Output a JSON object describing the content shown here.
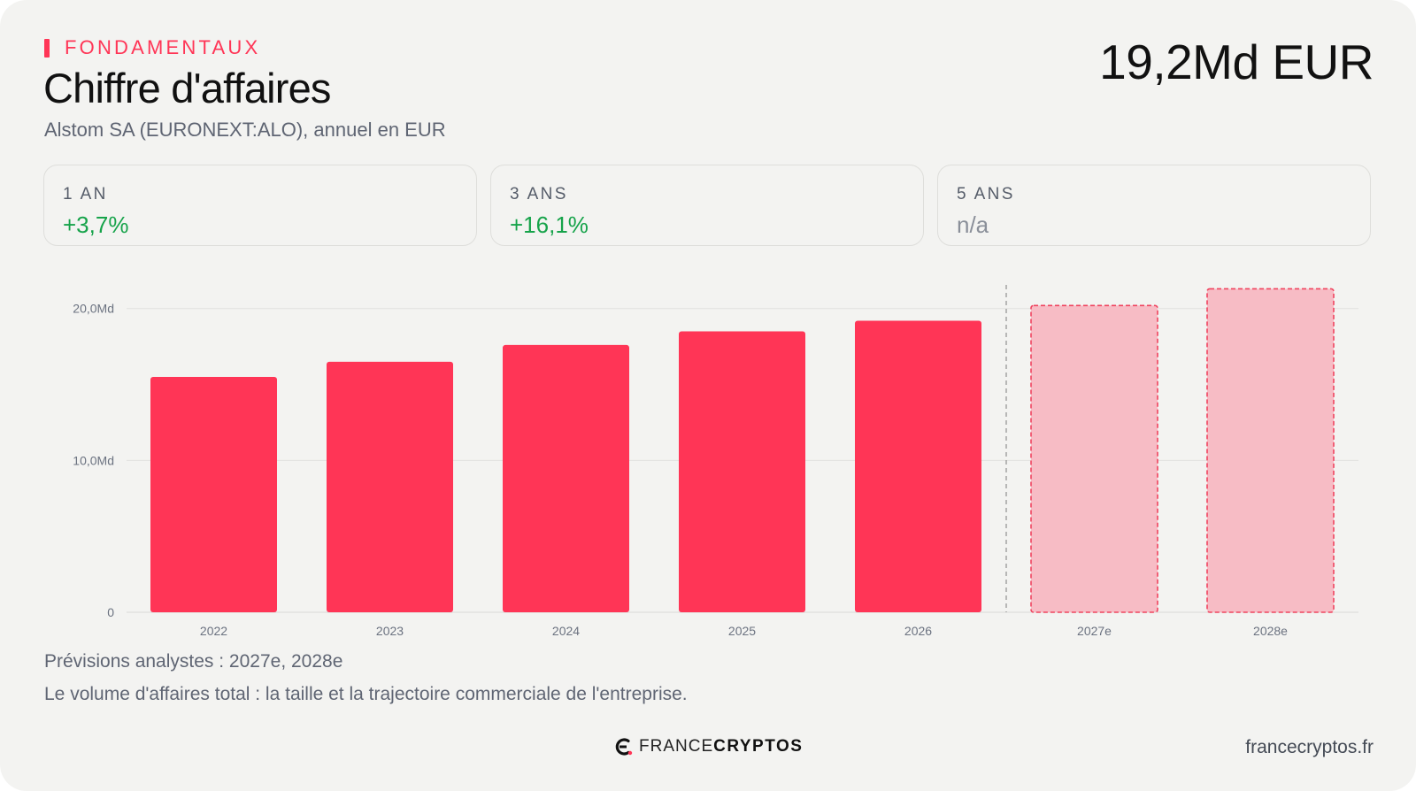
{
  "kicker": "FONDAMENTAUX",
  "title": "Chiffre d'affaires",
  "subtitle": "Alstom SA (EURONEXT:ALO), annuel en EUR",
  "headline_value": "19,2Md EUR",
  "stats": [
    {
      "label": "1 AN",
      "value": "+3,7%",
      "tone": "positive"
    },
    {
      "label": "3 ANS",
      "value": "+16,1%",
      "tone": "positive"
    },
    {
      "label": "5 ANS",
      "value": "n/a",
      "tone": "neutral"
    }
  ],
  "chart_data": {
    "type": "bar",
    "title": "",
    "xlabel": "",
    "ylabel": "",
    "categories": [
      "2022",
      "2023",
      "2024",
      "2025",
      "2026",
      "2027e",
      "2028e"
    ],
    "values": [
      15.5,
      16.5,
      17.6,
      18.5,
      19.2,
      20.2,
      21.3
    ],
    "estimated": [
      false,
      false,
      false,
      false,
      false,
      true,
      true
    ],
    "ylim": [
      0,
      21.5
    ],
    "yticks": [
      0,
      10,
      20
    ],
    "ytick_labels": [
      "0",
      "10,0Md",
      "20,0Md"
    ],
    "grid": true,
    "colors": {
      "actual": "#ff3556",
      "estimate_fill": "#f7bcc5",
      "estimate_border": "#f0445f"
    }
  },
  "footer": {
    "forecast_note": "Prévisions analystes : 2027e, 2028e",
    "description": "Le volume d'affaires total : la taille et la trajectoire commerciale de l'entreprise.",
    "brand_light": "FRANCE",
    "brand_bold": "CRYPTOS",
    "site": "francecryptos.fr"
  },
  "colors": {
    "accent": "#ff3556",
    "positive": "#16a34a",
    "background": "#f3f3f1"
  }
}
